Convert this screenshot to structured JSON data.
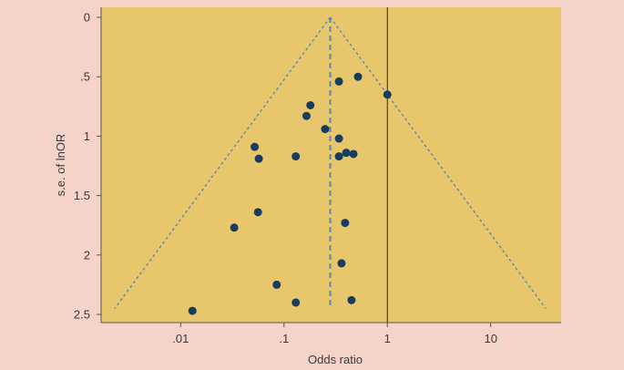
{
  "chart_data": {
    "type": "scatter",
    "title": "",
    "xlabel": "Odds ratio",
    "ylabel": "s.e. of lnOR",
    "x_scale": "log",
    "x_ticks": [
      0.01,
      0.1,
      1,
      10
    ],
    "x_tick_labels": [
      ".01",
      ".1",
      "1",
      "10"
    ],
    "y_ticks": [
      0,
      0.5,
      1,
      1.5,
      2,
      2.5
    ],
    "y_tick_labels": [
      "0",
      ".5",
      "1",
      "1.5",
      "2",
      "2.5"
    ],
    "y_reversed": true,
    "xlim": [
      0.0017,
      48
    ],
    "ylim": [
      0,
      2.57
    ],
    "grid": false,
    "pooled_or": 0.28,
    "null_line_or": 1,
    "funnel_se_max": 2.45,
    "colors": {
      "plot_background": "#e8c66b",
      "page_background": "#f6d3c9",
      "points": "#173c60",
      "funnel_lines": "#5a88b0",
      "null_line": "#2a2a2a"
    },
    "points": [
      {
        "or": 0.52,
        "se": 0.5
      },
      {
        "or": 0.34,
        "se": 0.54
      },
      {
        "or": 1.0,
        "se": 0.65
      },
      {
        "or": 0.18,
        "se": 0.74
      },
      {
        "or": 0.165,
        "se": 0.83
      },
      {
        "or": 0.25,
        "se": 0.94
      },
      {
        "or": 0.34,
        "se": 1.02
      },
      {
        "or": 0.052,
        "se": 1.09
      },
      {
        "or": 0.4,
        "se": 1.14
      },
      {
        "or": 0.47,
        "se": 1.15
      },
      {
        "or": 0.13,
        "se": 1.17
      },
      {
        "or": 0.34,
        "se": 1.17
      },
      {
        "or": 0.057,
        "se": 1.19
      },
      {
        "or": 0.056,
        "se": 1.64
      },
      {
        "or": 0.39,
        "se": 1.73
      },
      {
        "or": 0.033,
        "se": 1.77
      },
      {
        "or": 0.36,
        "se": 2.07
      },
      {
        "or": 0.085,
        "se": 2.25
      },
      {
        "or": 0.45,
        "se": 2.38
      },
      {
        "or": 0.13,
        "se": 2.4
      },
      {
        "or": 0.013,
        "se": 2.47
      }
    ]
  }
}
